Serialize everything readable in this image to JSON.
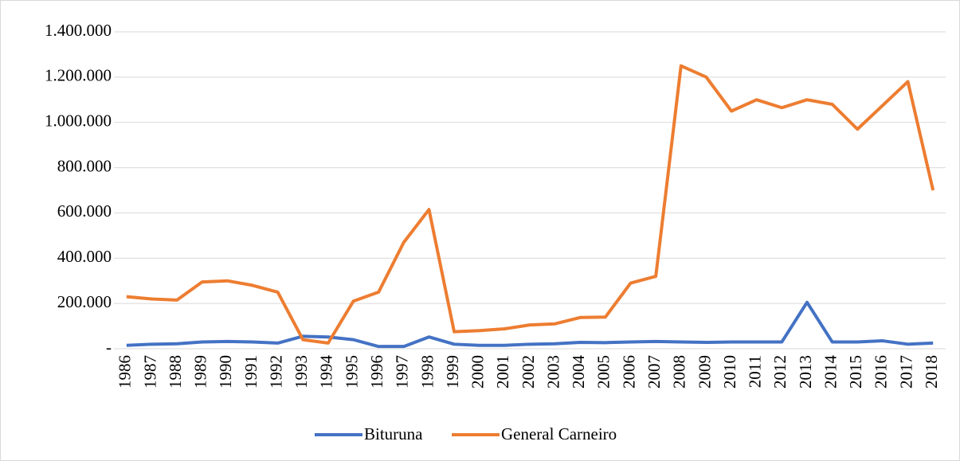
{
  "chart_data": {
    "type": "line",
    "categories": [
      "1986",
      "1987",
      "1988",
      "1989",
      "1990",
      "1991",
      "1992",
      "1993",
      "1994",
      "1995",
      "1996",
      "1997",
      "1998",
      "1999",
      "2000",
      "2001",
      "2002",
      "2003",
      "2004",
      "2005",
      "2006",
      "2007",
      "2008",
      "2009",
      "2010",
      "2011",
      "2012",
      "2013",
      "2014",
      "2015",
      "2016",
      "2017",
      "2018"
    ],
    "series": [
      {
        "name": "Bituruna",
        "color": "#4472c4",
        "values": [
          15000,
          20000,
          22000,
          30000,
          32000,
          30000,
          25000,
          55000,
          52000,
          40000,
          10000,
          10000,
          52000,
          20000,
          15000,
          15000,
          20000,
          22000,
          28000,
          27000,
          30000,
          32000,
          30000,
          28000,
          30000,
          30000,
          30000,
          205000,
          30000,
          30000,
          35000,
          20000,
          25000
        ]
      },
      {
        "name": "General Carneiro",
        "color": "#ed7d31",
        "values": [
          230000,
          220000,
          215000,
          295000,
          300000,
          280000,
          250000,
          40000,
          25000,
          210000,
          250000,
          470000,
          615000,
          75000,
          80000,
          88000,
          105000,
          110000,
          138000,
          140000,
          290000,
          320000,
          1250000,
          1200000,
          1050000,
          1100000,
          1065000,
          1100000,
          1080000,
          970000,
          1075000,
          1180000,
          700000
        ]
      }
    ],
    "ylim": [
      0,
      1400000
    ],
    "yticks": [
      {
        "value": 0,
        "label": "-"
      },
      {
        "value": 200000,
        "label": "200.000"
      },
      {
        "value": 400000,
        "label": "400.000"
      },
      {
        "value": 600000,
        "label": "600.000"
      },
      {
        "value": 800000,
        "label": "800.000"
      },
      {
        "value": 1000000,
        "label": "1.000.000"
      },
      {
        "value": 1200000,
        "label": "1.200.000"
      },
      {
        "value": 1400000,
        "label": "1.400.000"
      }
    ],
    "grid": true,
    "legend": "bottom"
  }
}
